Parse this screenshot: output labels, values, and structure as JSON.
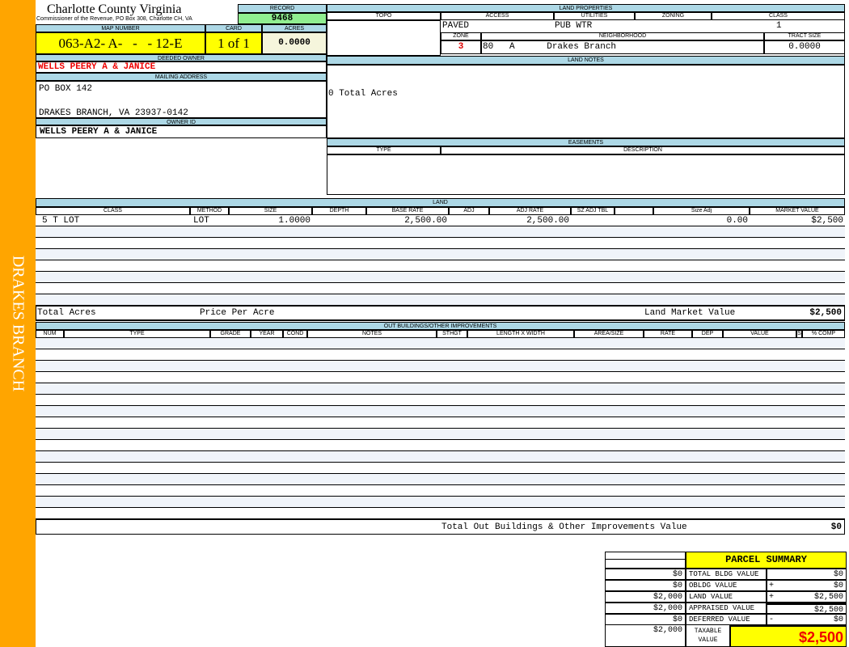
{
  "sidebar": {
    "label": "DRAKES BRANCH",
    "color": "#ffa500"
  },
  "header": {
    "title": "Charlotte County Virginia",
    "subtitle": "Commissioner of the Revenue, PO Box 308, Charlotte CH, VA",
    "record_label": "RECORD",
    "record": "9468",
    "map_number_label": "MAP NUMBER",
    "map_number": "063-A2- A-   -   - 12-E",
    "card_label": "CARD",
    "card": "1 of 1",
    "acres_label": "ACRES",
    "acres": "0.0000"
  },
  "owner": {
    "deeded_label": "DEEDED OWNER",
    "deeded": "WELLS PEERY A & JANICE",
    "mailing_label": "MAILING ADDRESS",
    "address1": "PO BOX 142",
    "address2": "DRAKES BRANCH, VA 23937-0142",
    "owner_id_label": "OWNER ID",
    "owner_id": "WELLS PEERY A & JANICE"
  },
  "land_properties": {
    "title": "LAND PROPERTIES",
    "topo_label": "TOPO",
    "access_label": "ACCESS",
    "utilities_label": "UTILITIES",
    "zoning_label": "ZONING",
    "class_label": "CLASS",
    "access": "PAVED",
    "utilities": "PUB WTR",
    "class": "1",
    "zone_label": "ZONE",
    "neighborhood_label": "NEIGHBORHOOD",
    "tract_label": "TRACT SIZE",
    "zone": "3",
    "neighborhood": "80   A      Drakes Branch",
    "tract_size": "0.0000"
  },
  "land_notes": {
    "title": "LAND NOTES",
    "text": "0 Total Acres"
  },
  "easements": {
    "title": "EASEMENTS",
    "type_label": "TYPE",
    "desc_label": "DESCRIPTION"
  },
  "land": {
    "title": "LAND",
    "columns": [
      "CLASS",
      "METHOD",
      "SIZE",
      "DEPTH",
      "BASE RATE",
      "ADJ",
      "ADJ RATE",
      "SZ ADJ TBL",
      "",
      "Size Adj",
      "MARKET VALUE"
    ],
    "rows": [
      [
        "5 T LOT",
        "LOT",
        "1.0000",
        "",
        "2,500.00",
        "",
        "2,500.00",
        "",
        "",
        "0.00",
        "$2,500"
      ]
    ],
    "total_acres_label": "Total Acres",
    "price_per_acre_label": "Price Per Acre",
    "market_value_label": "Land Market Value",
    "market_value": "$2,500"
  },
  "outbuildings": {
    "title": "OUT BUILDINGS/OTHER IMPROVEMENTS",
    "columns": [
      "NUM",
      "TYPE",
      "GRADE",
      "YEAR",
      "COND",
      "NOTES",
      "STHGT",
      "LENGTH X WIDTH",
      "AREA/SIZE",
      "RATE",
      "DEP",
      "VALUE",
      "S",
      "% COMP"
    ],
    "total_label": "Total Out Buildings & Other Improvements Value",
    "total": "$0"
  },
  "summary": {
    "title": "PARCEL SUMMARY",
    "rows": [
      {
        "prior": "$0",
        "label": "TOTAL BLDG VALUE",
        "op": "",
        "value": "$0"
      },
      {
        "prior": "$0",
        "label": "OBLDG VALUE",
        "op": "+",
        "value": "$0"
      },
      {
        "prior": "$2,000",
        "label": "LAND VALUE",
        "op": "+",
        "value": "$2,500"
      },
      {
        "prior": "$2,000",
        "label": "APPRAISED VALUE",
        "op": "",
        "value": "$2,500"
      },
      {
        "prior": "$0",
        "label": "DEFERRED VALUE",
        "op": "-",
        "value": "$0"
      }
    ],
    "taxable_prior": "$2,000",
    "taxable_label": "TAXABLE VALUE",
    "taxable": "$2,500"
  }
}
